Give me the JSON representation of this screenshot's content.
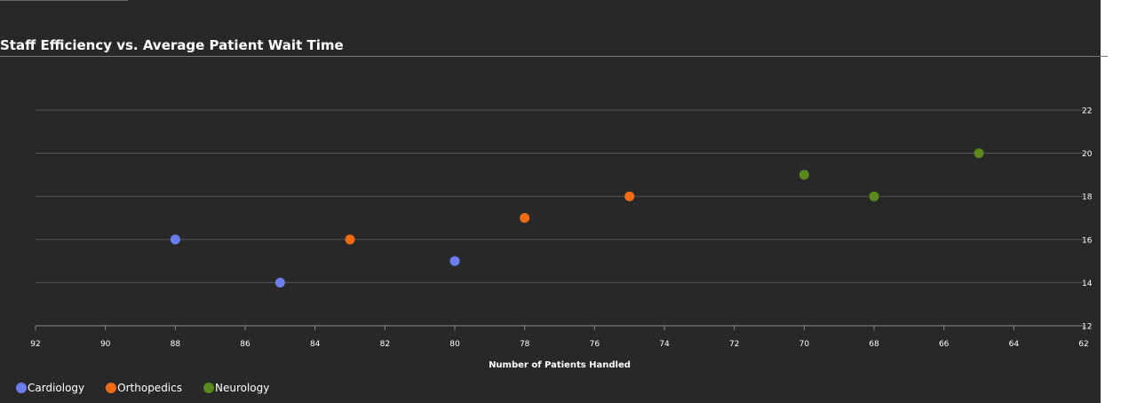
{
  "chart_data": {
    "type": "scatter",
    "title": "Staff Efficiency vs. Average Patient Wait Time",
    "xlabel": "Number of Patients Handled",
    "ylabel": "",
    "x_reversed": true,
    "xlim": [
      62,
      92
    ],
    "ylim": [
      12,
      22
    ],
    "x_ticks": [
      "92",
      "90",
      "88",
      "86",
      "84",
      "82",
      "80",
      "78",
      "76",
      "74",
      "72",
      "70",
      "68",
      "66",
      "64",
      "62"
    ],
    "y_ticks": [
      "12",
      "14",
      "16",
      "18",
      "20",
      "22"
    ],
    "grid": "horizontal",
    "legend_position": "bottom-left",
    "series": [
      {
        "name": "Cardiology",
        "color": "#6b7ef0",
        "points": [
          {
            "x": 88,
            "y": 16
          },
          {
            "x": 85,
            "y": 14
          },
          {
            "x": 80,
            "y": 15
          }
        ]
      },
      {
        "name": "Orthopedics",
        "color": "#f26b12",
        "points": [
          {
            "x": 83,
            "y": 16
          },
          {
            "x": 78,
            "y": 17
          },
          {
            "x": 75,
            "y": 18
          }
        ]
      },
      {
        "name": "Neurology",
        "color": "#5a8a1e",
        "points": [
          {
            "x": 70,
            "y": 19
          },
          {
            "x": 68,
            "y": 18
          },
          {
            "x": 65,
            "y": 20
          }
        ]
      }
    ]
  }
}
